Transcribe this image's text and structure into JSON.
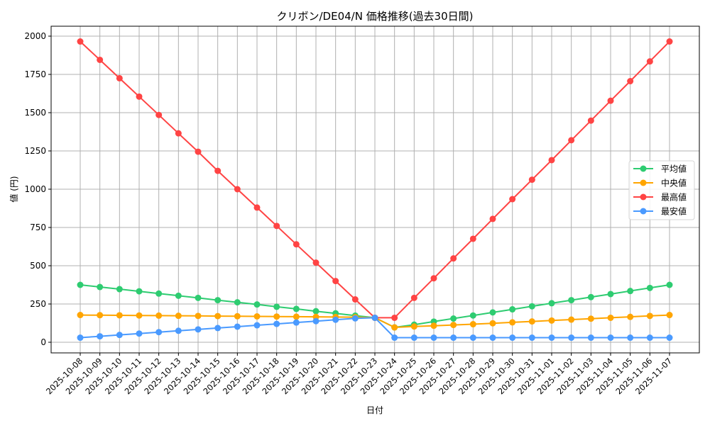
{
  "chart_data": {
    "type": "line",
    "title": "クリボン/DE04/N 価格推移(過去30日間)",
    "xlabel": "日付",
    "ylabel": "値 (円)",
    "ylim": [
      -60,
      2070
    ],
    "yticks": [
      0,
      250,
      500,
      750,
      1000,
      1250,
      1500,
      1750,
      2000
    ],
    "grid": true,
    "legend_position": "center right",
    "x": [
      "2025-10-08",
      "2025-10-09",
      "2025-10-10",
      "2025-10-11",
      "2025-10-12",
      "2025-10-13",
      "2025-10-14",
      "2025-10-15",
      "2025-10-16",
      "2025-10-17",
      "2025-10-18",
      "2025-10-19",
      "2025-10-20",
      "2025-10-21",
      "2025-10-22",
      "2025-10-23",
      "2025-10-24",
      "2025-10-25",
      "2025-10-26",
      "2025-10-27",
      "2025-10-28",
      "2025-10-29",
      "2025-10-30",
      "2025-10-31",
      "2025-11-01",
      "2025-11-02",
      "2025-11-03",
      "2025-11-04",
      "2025-11-05",
      "2025-11-06",
      "2025-11-07"
    ],
    "series": [
      {
        "name": "平均値",
        "color": "#2ecc71",
        "values": [
          375,
          361,
          347,
          333,
          318,
          304,
          290,
          275,
          261,
          247,
          232,
          218,
          203,
          189,
          174,
          160,
          97,
          115,
          135,
          155,
          175,
          195,
          215,
          235,
          255,
          275,
          295,
          315,
          335,
          355,
          375
        ]
      },
      {
        "name": "中央値",
        "color": "#ffa500",
        "values": [
          178,
          177,
          176,
          175,
          174,
          173,
          172,
          171,
          170,
          169,
          168,
          167,
          166,
          165,
          164,
          160,
          97,
          103,
          108,
          113,
          118,
          124,
          130,
          136,
          142,
          148,
          154,
          160,
          166,
          172,
          178
        ]
      },
      {
        "name": "最高値",
        "color": "#ff4444",
        "values": [
          1965,
          1845,
          1725,
          1605,
          1485,
          1365,
          1245,
          1120,
          1000,
          880,
          760,
          640,
          520,
          400,
          280,
          160,
          160,
          290,
          418,
          548,
          676,
          806,
          935,
          1062,
          1190,
          1320,
          1448,
          1578,
          1706,
          1835,
          1965
        ]
      },
      {
        "name": "最安値",
        "color": "#4a9aff",
        "values": [
          30,
          39,
          48,
          57,
          66,
          75,
          84,
          93,
          102,
          111,
          120,
          129,
          138,
          147,
          156,
          160,
          30,
          30,
          30,
          30,
          30,
          30,
          30,
          30,
          30,
          30,
          30,
          30,
          30,
          30,
          30
        ]
      }
    ]
  }
}
